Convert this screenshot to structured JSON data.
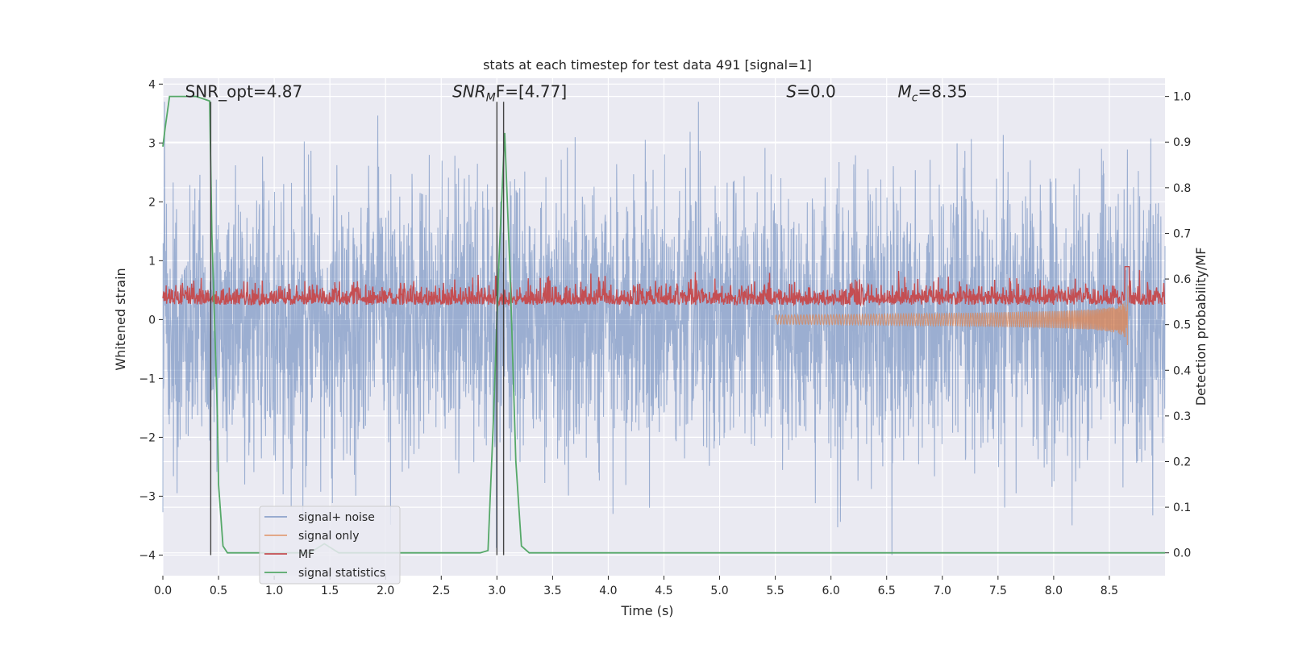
{
  "chart_data": {
    "type": "line",
    "title": "stats at each timestep for test data 491 [signal=1]",
    "xlabel": "Time (s)",
    "ylabel_left": "Whitened strain",
    "ylabel_right": "Detection probability/MF",
    "xlim": [
      0.0,
      9.0
    ],
    "ylim_left": [
      -4.35,
      4.1
    ],
    "ylim_right": [
      -0.05,
      1.04
    ],
    "x_ticks": [
      0.0,
      0.5,
      1.0,
      1.5,
      2.0,
      2.5,
      3.0,
      3.5,
      4.0,
      4.5,
      5.0,
      5.5,
      6.0,
      6.5,
      7.0,
      7.5,
      8.0,
      8.5
    ],
    "x_tick_labels": [
      "0.0",
      "0.5",
      "1.0",
      "1.5",
      "2.0",
      "2.5",
      "3.0",
      "3.5",
      "4.0",
      "4.5",
      "5.0",
      "5.5",
      "6.0",
      "6.5",
      "7.0",
      "7.5",
      "8.0",
      "8.5"
    ],
    "y_ticks_left": [
      -4,
      -3,
      -2,
      -1,
      0,
      1,
      2,
      3,
      4
    ],
    "y_tick_labels_left": [
      "−4",
      "−3",
      "−2",
      "−1",
      "0",
      "1",
      "2",
      "3",
      "4"
    ],
    "y_ticks_right": [
      0.0,
      0.1,
      0.2,
      0.3,
      0.4,
      0.5,
      0.6,
      0.7,
      0.8,
      0.9,
      1.0
    ],
    "y_tick_labels_right": [
      "0.0",
      "0.1",
      "0.2",
      "0.3",
      "0.4",
      "0.5",
      "0.6",
      "0.7",
      "0.8",
      "0.9",
      "1.0"
    ],
    "grid": true,
    "legend_position": "lower-left",
    "series": [
      {
        "name": "signal+ noise",
        "color": "#4c72b0",
        "axis": "left",
        "style": "noise",
        "t_start": 0.0,
        "t_end": 9.0,
        "amplitude_typical": 1.2,
        "amplitude_max": 3.7
      },
      {
        "name": "signal only",
        "color": "#dd8452",
        "axis": "left",
        "style": "chirp",
        "t_start": 5.5,
        "t_end": 8.67,
        "amplitude_peak": 0.65
      },
      {
        "name": "MF",
        "color": "#c44e52",
        "axis": "left",
        "style": "matched-filter",
        "baseline": 0.3,
        "range": [
          0.0,
          0.9
        ]
      },
      {
        "name": "signal statistics",
        "color": "#55a868",
        "axis": "right",
        "x": [
          0.0,
          0.02,
          0.06,
          0.3,
          0.42,
          0.44,
          0.49,
          0.5,
          0.54,
          0.58,
          1.32,
          1.45,
          1.58,
          2.85,
          2.92,
          2.97,
          3.02,
          3.07,
          3.12,
          3.17,
          3.22,
          3.29,
          9.0
        ],
        "y": [
          0.89,
          0.93,
          1.0,
          1.0,
          0.99,
          0.7,
          0.3,
          0.15,
          0.015,
          0.0,
          0.0,
          0.02,
          0.0,
          0.0,
          0.005,
          0.3,
          0.65,
          0.92,
          0.6,
          0.2,
          0.015,
          0.0,
          0.0
        ]
      }
    ],
    "vertical_lines": [
      0.43,
      3.0,
      3.06
    ],
    "annotations": [
      {
        "text": "SNR_opt=4.87",
        "x": 0.2
      },
      {
        "text": "SNR",
        "sub": "M",
        "tail": "F=[4.77]",
        "x": 2.6,
        "italic": true
      },
      {
        "text": "S",
        "tail": "=0.0",
        "x": 5.6,
        "italic": true
      },
      {
        "text": "M",
        "sub": "c",
        "tail": "=8.35",
        "x": 6.6,
        "italic": true
      }
    ]
  }
}
